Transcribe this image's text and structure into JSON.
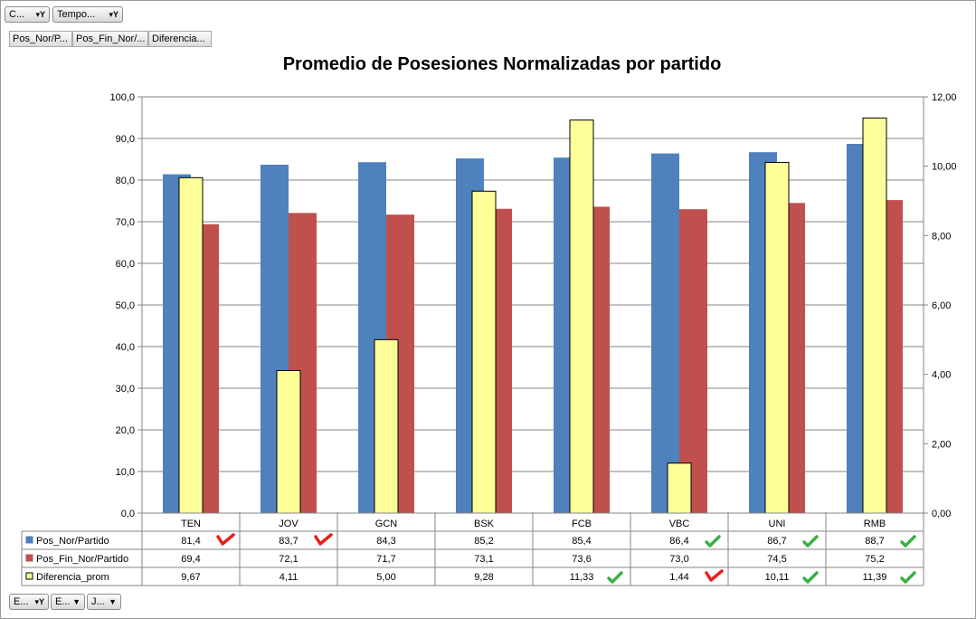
{
  "filters": {
    "top": [
      {
        "label": "C...",
        "icon": "filter-dropdown-icon"
      },
      {
        "label": "Tempo...",
        "icon": "filter-dropdown-icon"
      }
    ],
    "values": [
      "Pos_Nor/P...",
      "Pos_Fin_Nor/...",
      "Diferencia..."
    ],
    "bottom": [
      {
        "label": "E...",
        "icon": "filter-dropdown-icon"
      },
      {
        "label": "E...",
        "icon": "dropdown-icon"
      },
      {
        "label": "J...",
        "icon": "dropdown-icon"
      }
    ]
  },
  "chart_data": {
    "type": "bar",
    "title": "Promedio de Posesiones Normalizadas por partido",
    "categories": [
      "TEN",
      "JOV",
      "GCN",
      "BSK",
      "FCB",
      "VBC",
      "UNI",
      "RMB"
    ],
    "ylim": [
      0,
      100
    ],
    "yticks": [
      "0,0",
      "10,0",
      "20,0",
      "30,0",
      "40,0",
      "50,0",
      "60,0",
      "70,0",
      "80,0",
      "90,0",
      "100,0"
    ],
    "y2lim": [
      0,
      12
    ],
    "y2ticks": [
      "0,00",
      "2,00",
      "4,00",
      "6,00",
      "8,00",
      "10,00",
      "12,00"
    ],
    "grid": true,
    "legend": "data-table-below",
    "series": [
      {
        "name": "Pos_Nor/Partido",
        "axis": "primary",
        "color": "#4f81bd",
        "values": [
          81.4,
          83.7,
          84.3,
          85.2,
          85.4,
          86.4,
          86.7,
          88.7
        ],
        "labels": [
          "81,4",
          "83,7",
          "84,3",
          "85,2",
          "85,4",
          "86,4",
          "86,7",
          "88,7"
        ],
        "indicators": [
          "down-red",
          "down-red",
          "none",
          "none",
          "none",
          "up-green",
          "up-green",
          "up-green"
        ]
      },
      {
        "name": "Pos_Fin_Nor/Partido",
        "axis": "primary",
        "color": "#c0504d",
        "values": [
          69.4,
          72.1,
          71.7,
          73.1,
          73.6,
          73.0,
          74.5,
          75.2
        ],
        "labels": [
          "69,4",
          "72,1",
          "71,7",
          "73,1",
          "73,6",
          "73,0",
          "74,5",
          "75,2"
        ],
        "indicators": [
          "none",
          "none",
          "none",
          "none",
          "none",
          "none",
          "none",
          "none"
        ]
      },
      {
        "name": "Diferencia_prom",
        "axis": "secondary",
        "color": "#ffff99",
        "values": [
          9.67,
          4.11,
          5.0,
          9.28,
          11.33,
          1.44,
          10.11,
          11.39
        ],
        "labels": [
          "9,67",
          "4,11",
          "5,00",
          "9,28",
          "11,33",
          "1,44",
          "10,11",
          "11,39"
        ],
        "indicators": [
          "none",
          "none",
          "none",
          "none",
          "up-green",
          "down-red",
          "up-green",
          "up-green"
        ]
      }
    ]
  },
  "colors": {
    "grid": "#868686",
    "axis": "#868686",
    "indicator_up": "#3cb043",
    "indicator_down": "#e8201c"
  }
}
